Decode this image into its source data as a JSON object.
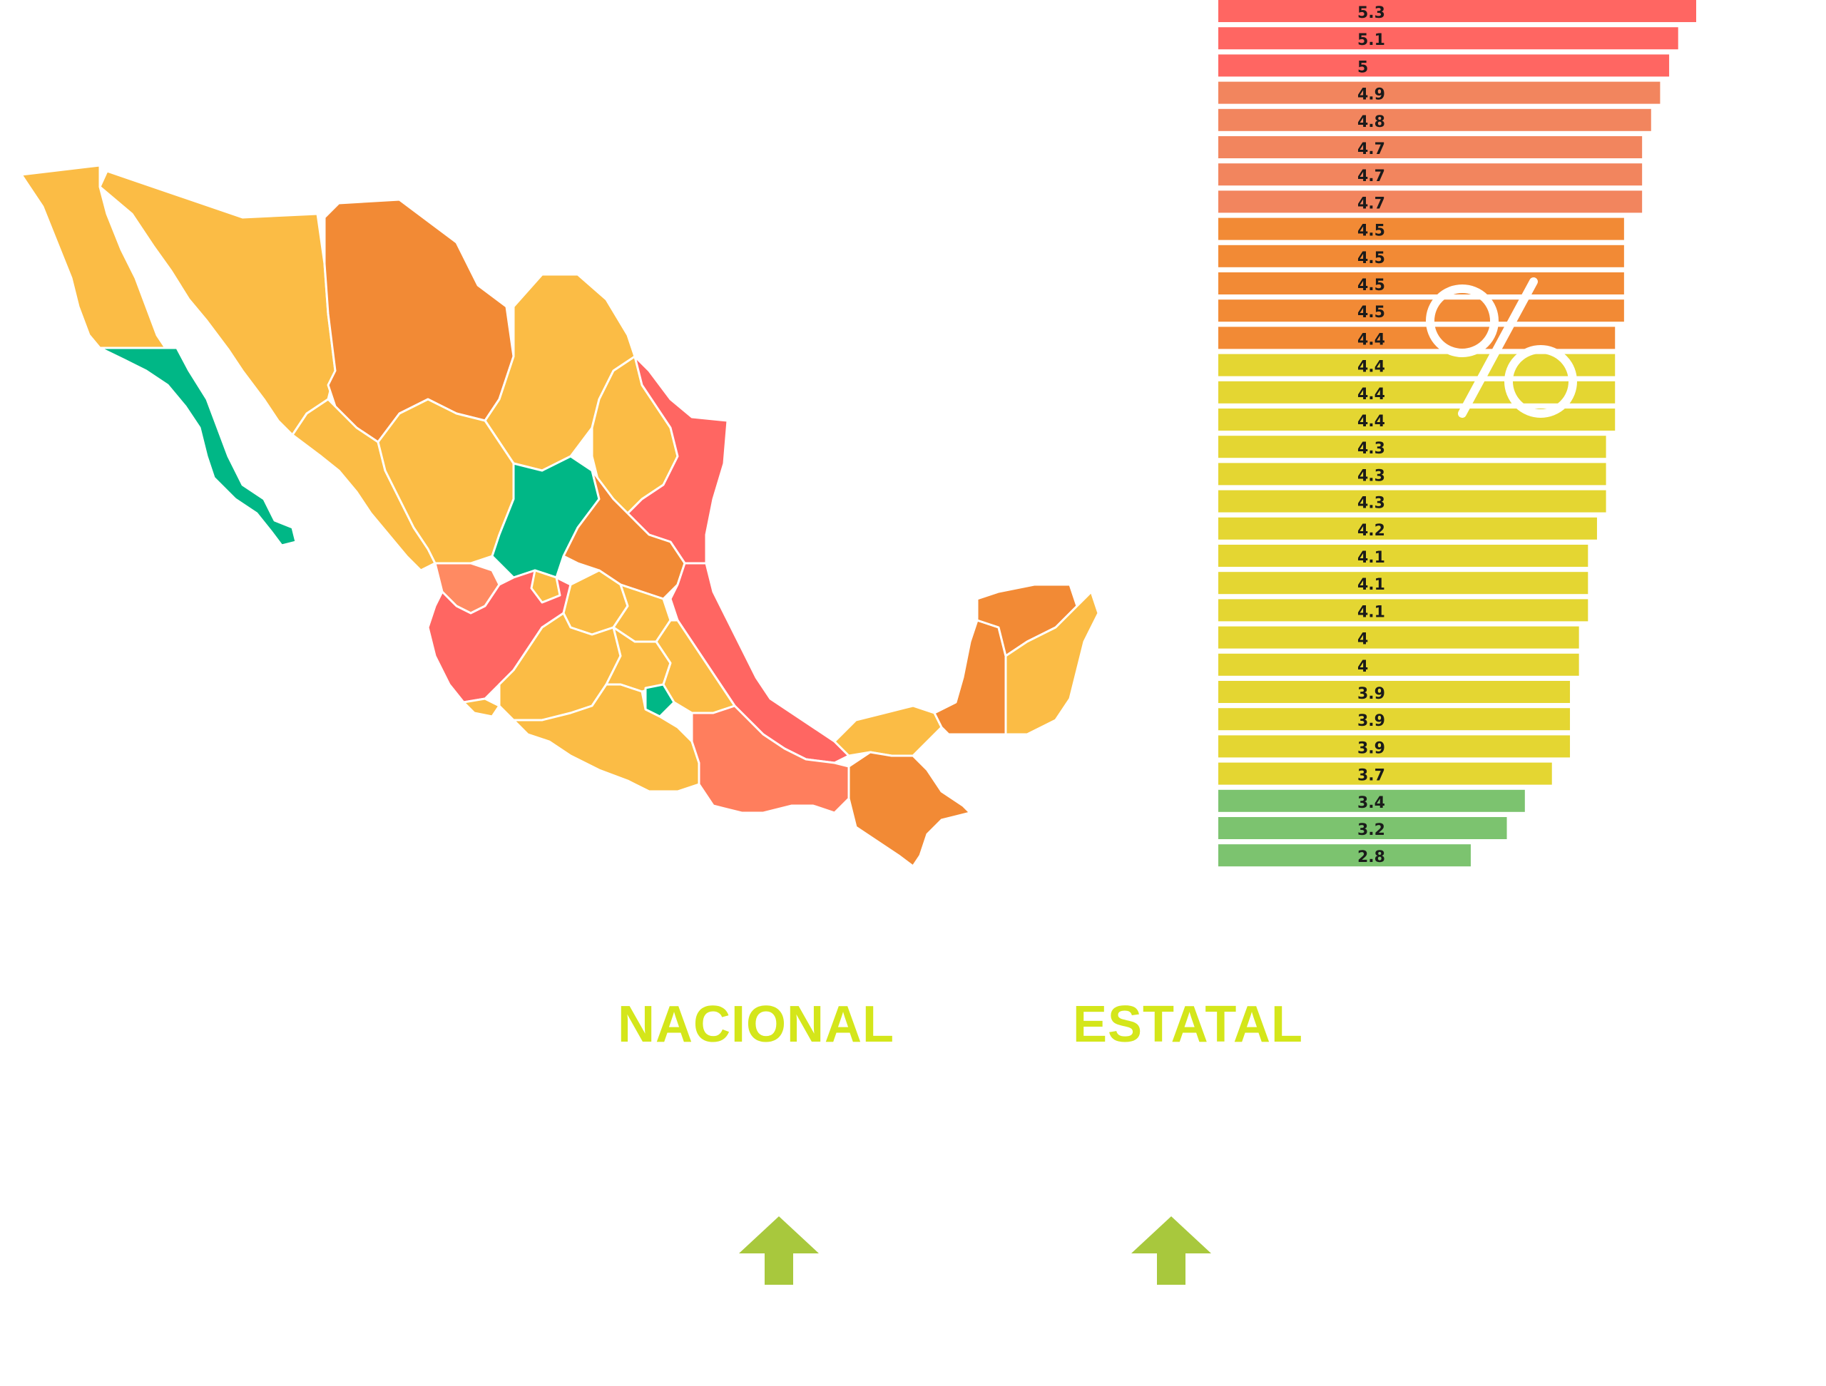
{
  "colors": {
    "red": "#ff6662",
    "salmon": "#f2855e",
    "orange": "#f28a35",
    "lightorange": "#fbbc45",
    "yellow": "#e4d632",
    "green": "#7cc36f",
    "teal": "#00b786",
    "accent": "#d4e61a",
    "arrow": "#a8c83d"
  },
  "chart_data": {
    "type": "bar",
    "orientation": "horizontal",
    "unit_symbol": "%",
    "values": [
      5.3,
      5.1,
      5,
      4.9,
      4.8,
      4.7,
      4.7,
      4.7,
      4.5,
      4.5,
      4.5,
      4.5,
      4.4,
      4.4,
      4.4,
      4.4,
      4.3,
      4.3,
      4.3,
      4.2,
      4.1,
      4.1,
      4.1,
      4,
      4,
      3.9,
      3.9,
      3.9,
      3.7,
      3.4,
      3.2,
      2.8
    ],
    "labels": [
      "5.3",
      "5.1",
      "5",
      "4.9",
      "4.8",
      "4.7",
      "4.7",
      "4.7",
      "4.5",
      "4.5",
      "4.5",
      "4.5",
      "4.4",
      "4.4",
      "4.4",
      "4.4",
      "4.3",
      "4.3",
      "4.3",
      "4.2",
      "4.1",
      "4.1",
      "4.1",
      "4",
      "4",
      "3.9",
      "3.9",
      "3.9",
      "3.7",
      "3.4",
      "3.2",
      "2.8"
    ],
    "bar_colors": [
      "red",
      "red",
      "red",
      "salmon",
      "salmon",
      "salmon",
      "salmon",
      "salmon",
      "orange",
      "orange",
      "orange",
      "orange",
      "orange",
      "yellow",
      "yellow",
      "yellow",
      "yellow",
      "yellow",
      "yellow",
      "yellow",
      "yellow",
      "yellow",
      "yellow",
      "yellow",
      "yellow",
      "yellow",
      "yellow",
      "yellow",
      "yellow",
      "green",
      "green",
      "green"
    ],
    "xlim": [
      0,
      5.3
    ],
    "grid": false,
    "legend": "none"
  },
  "sections": {
    "nacional": "NACIONAL",
    "estatal": "ESTATAL"
  },
  "icons": {
    "arrow": "arrow-up-icon",
    "map": "mexico-map-icon",
    "percent": "percent-sign-icon"
  }
}
